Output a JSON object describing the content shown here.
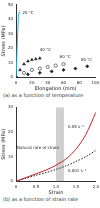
{
  "chart_data": [
    {
      "type": "scatter",
      "title": "(a) as a function of temperature",
      "x_label": "Elongation (mm)",
      "y_label": "Stress (MPa)",
      "xlim": [
        0,
        100
      ],
      "xticks": [
        0,
        20,
        40,
        60,
        80,
        100
      ],
      "ylim": [
        0,
        50
      ],
      "yticks": [
        0,
        10,
        20,
        30,
        40,
        50
      ],
      "grid": false,
      "series": [
        {
          "type": "line",
          "color": "#29b6e0",
          "marker": "none",
          "line_style": "solid",
          "x": [
            0,
            1,
            2,
            3,
            4,
            5
          ],
          "values": [
            0,
            15,
            30,
            42,
            45,
            44
          ]
        },
        {
          "type": "scatter",
          "color": "#222222",
          "marker": "triangle",
          "x": [
            0,
            5,
            10,
            15,
            20,
            25,
            30
          ],
          "values": [
            0,
            5,
            9,
            11,
            12,
            12.5,
            13
          ]
        },
        {
          "type": "scatter",
          "color": "#222222",
          "marker": "circle",
          "x": [
            0,
            10,
            20,
            30,
            40,
            50,
            60
          ],
          "values": [
            0,
            3,
            5,
            6,
            7,
            8,
            9
          ]
        },
        {
          "type": "scatter",
          "color": "#222222",
          "marker": "diamond",
          "x": [
            0,
            15,
            30,
            45,
            60,
            75,
            90
          ],
          "values": [
            0,
            2,
            3,
            4,
            5,
            6,
            7.5
          ]
        }
      ],
      "annotations": [
        {
          "text": "20 °C",
          "x": 8,
          "y": 44
        },
        {
          "text": "40 °C",
          "x": 30,
          "y": 19
        },
        {
          "text": "60 °C",
          "x": 55,
          "y": 14
        },
        {
          "text": "80 °C",
          "x": 82,
          "y": 12
        }
      ]
    },
    {
      "type": "line",
      "title": "(b) as a function of strain rate",
      "x_label": "Strain",
      "y_label": "Stress (MPa)",
      "xlim": [
        0,
        2
      ],
      "xticks": [
        0,
        0.5,
        1,
        1.5,
        2
      ],
      "ylim": [
        0,
        30
      ],
      "yticks": [
        0,
        10,
        20,
        30
      ],
      "grid": false,
      "series": [
        {
          "type": "line",
          "color": "#cc2222",
          "marker": "none",
          "line_style": "solid",
          "x": [
            0,
            0.25,
            0.5,
            0.75,
            1,
            1.25,
            1.5,
            1.75,
            2
          ],
          "values": [
            0,
            1.5,
            3,
            4.5,
            6.5,
            9,
            13,
            19,
            28
          ]
        },
        {
          "type": "line",
          "color": "#222222",
          "marker": "none",
          "line_style": "dotted",
          "x": [
            0,
            0.25,
            0.5,
            0.75,
            1,
            1.25,
            1.5,
            1.75,
            2
          ],
          "values": [
            0,
            1.2,
            2.4,
            3.5,
            4.8,
            6.2,
            8,
            10,
            12.5
          ]
        }
      ],
      "band": {
        "label": "Natural rate of strain",
        "range": [
          1,
          1.2
        ]
      },
      "annotations": [
        {
          "text": "0.05 s⁻¹",
          "x": 1.3,
          "y": 22
        },
        {
          "text": "0.001 s⁻¹",
          "x": 1.3,
          "y": 4
        }
      ]
    }
  ]
}
